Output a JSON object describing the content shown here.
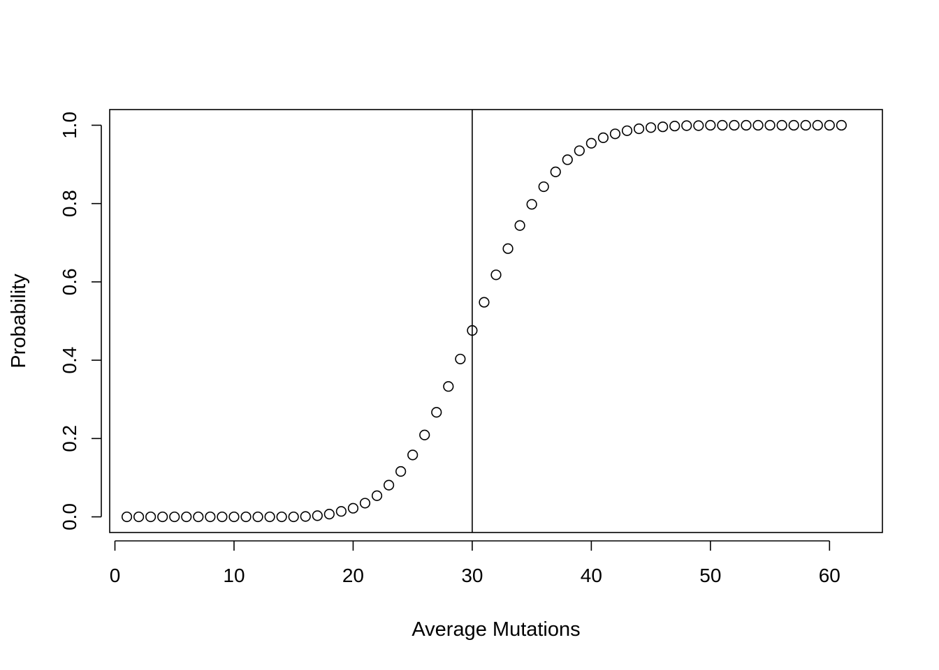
{
  "chart_data": {
    "type": "scatter",
    "title": "",
    "xlabel": "Average Mutations",
    "ylabel": "Probability",
    "xlim": [
      -0.44,
      64.44
    ],
    "ylim": [
      -0.04,
      1.04
    ],
    "x_ticks": [
      0,
      10,
      20,
      30,
      40,
      50,
      60
    ],
    "x_tick_labels": [
      "0",
      "10",
      "20",
      "30",
      "40",
      "50",
      "60"
    ],
    "y_ticks": [
      0.0,
      0.2,
      0.4,
      0.6,
      0.8,
      1.0
    ],
    "y_tick_labels": [
      "0.0",
      "0.2",
      "0.4",
      "0.6",
      "0.8",
      "1.0"
    ],
    "grid": false,
    "legend": "none",
    "marker": "open-circle",
    "vertical_reference_line": {
      "x": 30
    },
    "series": [
      {
        "x": [
          1,
          2,
          3,
          4,
          5,
          6,
          7,
          8,
          9,
          10,
          11,
          12,
          13,
          14,
          15,
          16,
          17,
          18,
          19,
          20,
          21,
          22,
          23,
          24,
          25,
          26,
          27,
          28,
          29,
          30,
          31,
          32,
          33,
          34,
          35,
          36,
          37,
          38,
          39,
          40,
          41,
          42,
          43,
          44,
          45,
          46,
          47,
          48,
          49,
          50,
          51,
          52,
          53,
          54,
          55,
          56,
          57,
          58,
          59,
          60,
          61
        ],
        "y": [
          0,
          0,
          0,
          0,
          0,
          0,
          0,
          0,
          0,
          0,
          0,
          0,
          0,
          0,
          0,
          0.001,
          0.003,
          0.007,
          0.014,
          0.022,
          0.035,
          0.054,
          0.081,
          0.116,
          0.158,
          0.209,
          0.267,
          0.333,
          0.403,
          0.476,
          0.548,
          0.618,
          0.685,
          0.744,
          0.798,
          0.843,
          0.881,
          0.912,
          0.935,
          0.954,
          0.968,
          0.978,
          0.986,
          0.991,
          0.994,
          0.996,
          0.998,
          0.999,
          0.999,
          1,
          1,
          1,
          1,
          1,
          1,
          1,
          1,
          1,
          1,
          1,
          1
        ]
      }
    ]
  }
}
